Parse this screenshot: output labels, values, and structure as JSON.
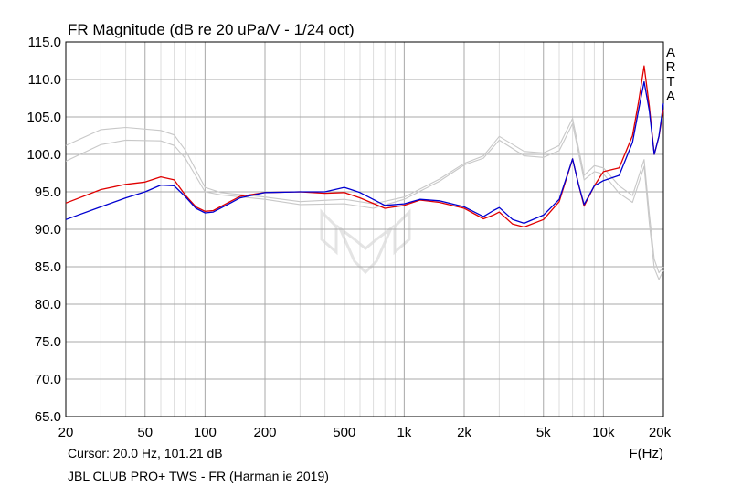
{
  "chart_data": {
    "type": "line",
    "title": "FR Magnitude (dB re 20 uPa/V - 1/24 oct)",
    "xlabel": "F(Hz)",
    "ylabel": "",
    "x_scale": "log",
    "xlim": [
      20,
      20000
    ],
    "ylim": [
      65,
      115
    ],
    "grid": true,
    "x_ticks": [
      20,
      50,
      100,
      200,
      500,
      1000,
      2000,
      5000,
      10000,
      20000
    ],
    "x_tick_labels": [
      "20",
      "50",
      "100",
      "200",
      "500",
      "1k",
      "2k",
      "5k",
      "10k",
      "20k"
    ],
    "y_ticks": [
      65,
      70,
      75,
      80,
      85,
      90,
      95,
      100,
      105,
      110,
      115
    ],
    "y_tick_labels": [
      "65.0",
      "70.0",
      "75.0",
      "80.0",
      "85.0",
      "90.0",
      "95.0",
      "100.0",
      "105.0",
      "110.0",
      "115.0"
    ],
    "watermark": "ARTA",
    "cursor_text": "Cursor: 20.0 Hz, 101.21 dB",
    "caption": "JBL CLUB PRO+ TWS - FR (Harman ie 2019)",
    "series": [
      {
        "color": "#c8c8c8",
        "x": [
          20,
          30,
          40,
          60,
          70,
          80,
          100,
          120,
          200,
          300,
          500,
          700,
          1000,
          1500,
          2000,
          2500,
          3000,
          4000,
          5000,
          6000,
          7000,
          8000,
          9000,
          10000,
          12000,
          14000,
          16000,
          17000,
          18000,
          19000,
          20000
        ],
        "y": [
          101.2,
          103.3,
          103.6,
          103.2,
          102.6,
          100.5,
          95.6,
          94.9,
          94.3,
          93.7,
          94.0,
          93.4,
          94.3,
          96.7,
          98.8,
          99.8,
          102.4,
          100.4,
          100.2,
          101.2,
          104.8,
          97.2,
          98.5,
          98.2,
          95.8,
          94.5,
          99.3,
          92.0,
          86.0,
          84.2,
          85.0
        ]
      },
      {
        "color": "#c8c8c8",
        "x": [
          20,
          30,
          40,
          60,
          70,
          80,
          100,
          120,
          200,
          300,
          500,
          700,
          1000,
          1500,
          2000,
          2500,
          3000,
          4000,
          5000,
          6000,
          7000,
          8000,
          9000,
          10000,
          12000,
          14000,
          16000,
          17000,
          18000,
          19000,
          20000
        ],
        "y": [
          99.1,
          101.3,
          101.9,
          101.8,
          101.2,
          99.4,
          95.0,
          94.6,
          94.0,
          93.3,
          93.4,
          92.8,
          94.0,
          96.4,
          98.6,
          99.5,
          101.9,
          99.8,
          99.6,
          100.5,
          104.1,
          96.6,
          97.7,
          97.4,
          94.8,
          93.6,
          98.4,
          90.8,
          84.8,
          83.3,
          84.5
        ]
      },
      {
        "color": "#e00000",
        "x": [
          20,
          30,
          40,
          50,
          60,
          70,
          80,
          90,
          100,
          110,
          150,
          200,
          300,
          400,
          500,
          600,
          800,
          1000,
          1200,
          1500,
          2000,
          2500,
          2800,
          3000,
          3500,
          4000,
          5000,
          6000,
          7000,
          7500,
          8000,
          9000,
          10000,
          12000,
          14000,
          15000,
          16000,
          17000,
          18000,
          19000,
          20000
        ],
        "y": [
          93.5,
          95.3,
          96.0,
          96.3,
          97.0,
          96.6,
          94.5,
          93.0,
          92.4,
          92.5,
          94.4,
          94.9,
          95.0,
          94.8,
          94.9,
          94.2,
          92.8,
          93.2,
          93.9,
          93.6,
          92.8,
          91.4,
          91.9,
          92.3,
          90.7,
          90.3,
          91.3,
          93.7,
          99.4,
          96.0,
          93.1,
          95.8,
          97.7,
          98.2,
          102.5,
          107.0,
          111.8,
          106.4,
          100.0,
          102.4,
          106.0
        ]
      },
      {
        "color": "#0000d0",
        "x": [
          20,
          30,
          40,
          50,
          60,
          70,
          80,
          90,
          100,
          110,
          150,
          200,
          300,
          400,
          500,
          600,
          800,
          1000,
          1200,
          1500,
          2000,
          2500,
          2800,
          3000,
          3500,
          4000,
          5000,
          6000,
          7000,
          7500,
          8000,
          9000,
          10000,
          12000,
          14000,
          15000,
          16000,
          17000,
          18000,
          19000,
          20000
        ],
        "y": [
          91.3,
          93.0,
          94.2,
          95.0,
          95.9,
          95.8,
          94.3,
          92.8,
          92.2,
          92.3,
          94.2,
          94.9,
          95.0,
          95.0,
          95.6,
          94.9,
          93.2,
          93.4,
          94.0,
          93.8,
          93.0,
          91.7,
          92.5,
          92.9,
          91.3,
          90.8,
          91.9,
          94.0,
          99.4,
          96.0,
          93.3,
          95.8,
          96.5,
          97.2,
          101.6,
          105.9,
          109.7,
          105.8,
          100.0,
          102.4,
          106.8
        ]
      }
    ]
  }
}
